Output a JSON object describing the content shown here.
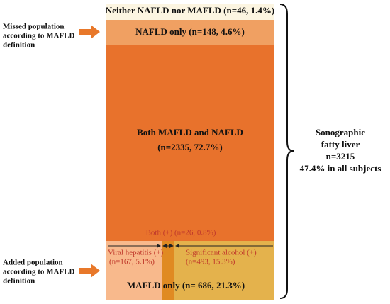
{
  "blocks": {
    "neither": "Neither NAFLD nor MAFLD  (n=46, 1.4%)",
    "nafld_only": "NAFLD only (n=148, 4.6%)",
    "both": [
      "Both MAFLD and NAFLD",
      "(n=2335, 72.7%)"
    ],
    "both_plus": "Both (+) (n=26,  0.8%)",
    "viral": [
      "Viral hepatitis (+)",
      "(n=167, 5.1%)"
    ],
    "alcohol": [
      "Significant alcohol (+)",
      "(n=493, 15.3%)"
    ],
    "mafld_only": "MAFLD only (n= 686, 21.3%)"
  },
  "left_labels": {
    "missed": [
      "Missed population",
      "according to MAFLD",
      "definition"
    ],
    "added": [
      "Added population",
      "according to MAFLD",
      "definition"
    ]
  },
  "right_label": [
    "Sonographic",
    "fatty liver",
    "n=3215",
    "47.4% in all subjects"
  ]
}
